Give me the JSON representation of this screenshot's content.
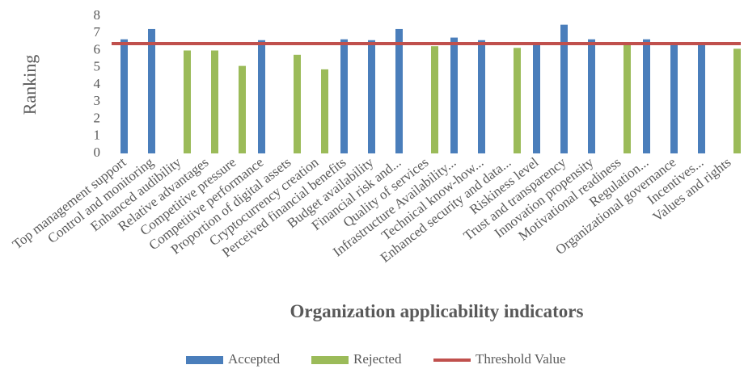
{
  "chart_data": {
    "type": "bar",
    "y_label": "Ranking",
    "x_label": "Organization applicability indicators",
    "categories": [
      "Top management support",
      "Control and monitoring",
      "Enhanced audibility",
      "Relative advantages",
      "Competitive pressure",
      "Competitive performance",
      "Proportion of digital assets",
      "Cryptocurrency creation",
      "Perceived financial benefits",
      "Budget availability",
      "Financial risk and...",
      "Quality of services",
      "Infrastructure Availability...",
      "Technical know-how...",
      "Enhanced security and data...",
      "Riskiness level",
      "Trust and transparency",
      "Innovation propensity",
      "Motivational readiness",
      "Regulation...",
      "Organizational governance",
      "Incentives...",
      "Values and rights"
    ],
    "series": [
      {
        "name": "Accepted",
        "color": "#4a7ebb",
        "values": [
          6.65,
          7.25,
          null,
          null,
          null,
          6.6,
          null,
          null,
          6.65,
          6.6,
          7.25,
          null,
          6.75,
          6.6,
          null,
          6.35,
          7.5,
          6.65,
          null,
          6.65,
          6.4,
          6.4,
          null
        ]
      },
      {
        "name": "Rejected",
        "color": "#9bbb59",
        "values": [
          null,
          null,
          6.0,
          6.0,
          5.1,
          null,
          5.75,
          4.9,
          null,
          null,
          null,
          6.25,
          null,
          null,
          6.15,
          null,
          null,
          null,
          6.35,
          null,
          null,
          null,
          6.1
        ]
      }
    ],
    "threshold": {
      "name": "Threshold Value",
      "color": "#c0504d",
      "value": 6.4
    },
    "ylim": [
      0,
      8
    ],
    "yticks": [
      0,
      1,
      2,
      3,
      4,
      5,
      6,
      7,
      8
    ],
    "grid": false,
    "legend": "bottom"
  }
}
